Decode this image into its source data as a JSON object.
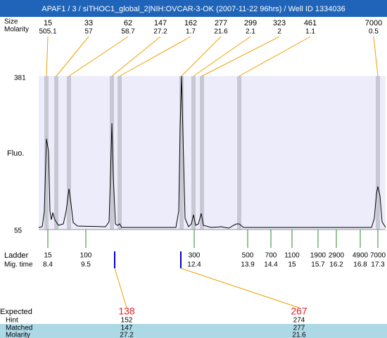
{
  "header": {
    "title": "APAF1 / 3 / siTHOC1_global_2|NIH:OVCAR-3-OK (2007-11-22 96hrs) / Well ID 1334036"
  },
  "peaks": {
    "size_label": "Size",
    "molarity_label": "Molarity",
    "sizes": [
      "15",
      "33",
      "62",
      "147",
      "162",
      "277",
      "299",
      "323",
      "461",
      "7000"
    ],
    "molarity": [
      "505.1",
      "57",
      "58.7",
      "27.2",
      "1.7",
      "21.6",
      "2.1",
      "2",
      "1.1",
      "0.5"
    ]
  },
  "axis": {
    "top": "381",
    "bottom": "55",
    "label": "Fluo."
  },
  "ladder": {
    "label": "Ladder",
    "time_label": "Mig. time",
    "sizes": [
      "15",
      "100",
      "300",
      "500",
      "700",
      "1100",
      "1900",
      "2900",
      "4900",
      "7000"
    ],
    "times": [
      "8.4",
      "9.5",
      "12.4",
      "13.9",
      "14.4",
      "15",
      "15.7",
      "16.2",
      "16.8",
      "17.3"
    ]
  },
  "expected": {
    "labels": [
      "Expected",
      "Hint",
      "Matched",
      "Molarity"
    ],
    "columns": [
      [
        "138",
        "152",
        "147",
        "27.2"
      ],
      [
        "267",
        "274",
        "277",
        "21.6"
      ]
    ]
  }
}
